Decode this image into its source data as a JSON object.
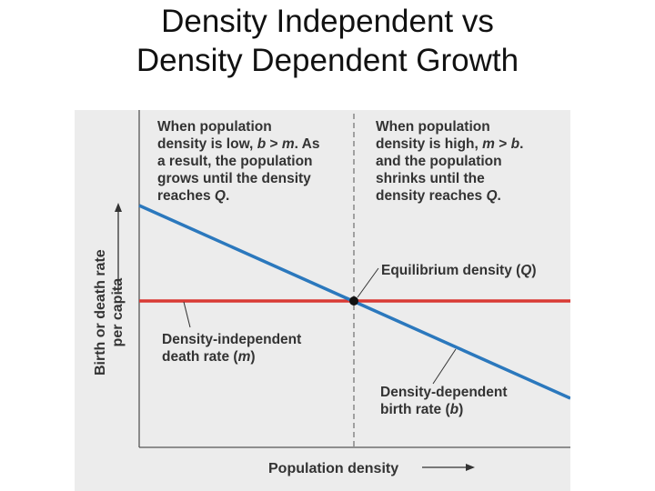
{
  "slide": {
    "title_line1": "Density Independent vs",
    "title_line2": "Density Dependent Growth"
  },
  "diagram": {
    "left_note": {
      "l1": "When population",
      "l2_pre": "density is low, ",
      "l2_b": "b",
      "l2_gt": " > ",
      "l2_m": "m",
      "l2_post": ". As",
      "l3": "a result, the population",
      "l4": "grows until the density",
      "l5_pre": "reaches ",
      "l5_q": "Q",
      "l5_post": "."
    },
    "right_note": {
      "l1": "When population",
      "l2_pre": "density is high, ",
      "l2_m": "m",
      "l2_gt": " > ",
      "l2_b": "b",
      "l2_post": ".",
      "l3": "and the population",
      "l4": "shrinks until the",
      "l5_pre": "density reaches ",
      "l5_q": "Q",
      "l5_post": "."
    },
    "equilibrium_label": {
      "pre": "Equilibrium density (",
      "q": "Q",
      "post": ")"
    },
    "death_label": {
      "l1": "Density-independent",
      "l2_pre": "death rate (",
      "l2_m": "m",
      "l2_post": ")"
    },
    "birth_label": {
      "l1": "Density-dependent",
      "l2_pre": "birth rate (",
      "l2_b": "b",
      "l2_post": ")"
    },
    "ylabel_line1": "Birth or death rate",
    "ylabel_line2": "per capita",
    "xlabel": "Population density",
    "colors": {
      "death_line": "#d93a34",
      "birth_line": "#2b78bd",
      "panel": "#ececec",
      "text": "#333333",
      "axis": "#555555"
    }
  }
}
